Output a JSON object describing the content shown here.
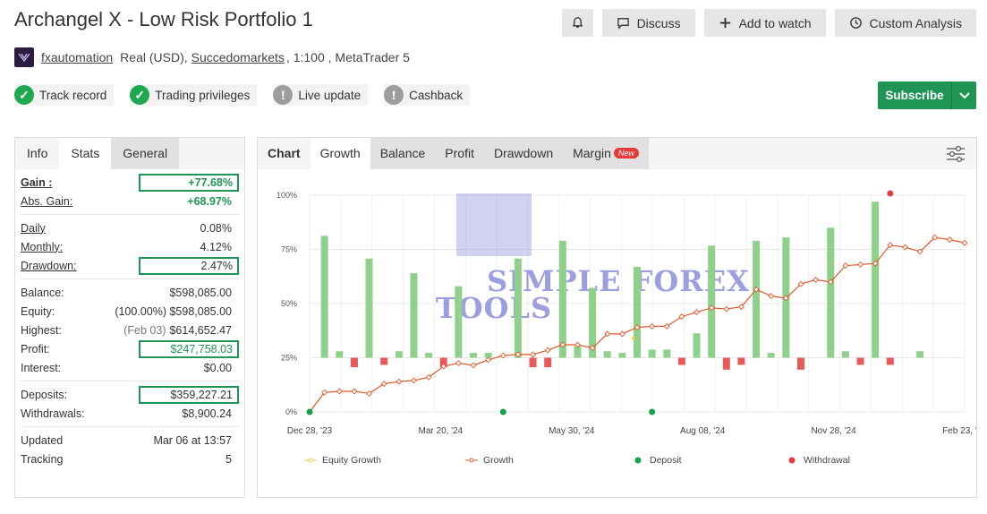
{
  "header": {
    "title": "Archangel X - Low Risk Portfolio 1",
    "buttons": {
      "discuss": "Discuss",
      "add_watch": "Add to watch",
      "custom_analysis": "Custom Analysis"
    },
    "user": "fxautomation",
    "account_prefix": "Real (USD),",
    "broker": "Succedomarkets",
    "account_suffix": ", 1:100 , MetaTrader 5"
  },
  "badges": [
    {
      "label": "Track record",
      "status": "ok"
    },
    {
      "label": "Trading privileges",
      "status": "ok"
    },
    {
      "label": "Live update",
      "status": "warn"
    },
    {
      "label": "Cashback",
      "status": "warn"
    }
  ],
  "subscribe": "Subscribe",
  "stats": {
    "tabs": [
      "Info",
      "Stats",
      "General"
    ],
    "gain_label": "Gain :",
    "gain": "+77.68%",
    "abs_gain_label": "Abs. Gain:",
    "abs_gain": "+68.97%",
    "daily_label": "Daily",
    "daily": "0.08%",
    "monthly_label": "Monthly:",
    "monthly": "4.12%",
    "drawdown_label": "Drawdown:",
    "drawdown": "2.47%",
    "balance_label": "Balance:",
    "balance": "$598,085.00",
    "equity_label": "Equity:",
    "equity_pct": "(100.00%)",
    "equity": "$598,085.00",
    "highest_label": "Highest:",
    "highest_date": "(Feb 03)",
    "highest": "$614,652.47",
    "profit_label": "Profit:",
    "profit": "$247,758.03",
    "interest_label": "Interest:",
    "interest": "$0.00",
    "deposits_label": "Deposits:",
    "deposits": "$359,227.21",
    "withdrawals_label": "Withdrawals:",
    "withdrawals": "$8,900.24",
    "updated_label": "Updated",
    "updated": "Mar 06 at 13:57",
    "tracking_label": "Tracking",
    "tracking": "5"
  },
  "chart_tabs": {
    "chart": "Chart",
    "growth": "Growth",
    "balance": "Balance",
    "profit": "Profit",
    "drawdown": "Drawdown",
    "margin": "Margin",
    "new": "New"
  },
  "chart_data": {
    "type": "line",
    "y_ticks": [
      "100%",
      "75%",
      "50%",
      "25%",
      "0%"
    ],
    "ylim": [
      0,
      100
    ],
    "x_ticks": [
      "Dec 28, '23",
      "Mar 20, '24",
      "May 30, '24",
      "Aug 08, '24",
      "Nov 28, '24",
      "Feb 23, '25"
    ],
    "legend": [
      "Equity Growth",
      "Growth",
      "Deposit",
      "Withdrawal"
    ],
    "growth": [
      0,
      9,
      9.5,
      9.5,
      8.5,
      13,
      14,
      14.5,
      16,
      21,
      22.5,
      21.5,
      24,
      26,
      26.5,
      26.5,
      28.5,
      31,
      31,
      29.5,
      36,
      36,
      39,
      39.5,
      39.5,
      44,
      46,
      48,
      47.5,
      48.5,
      56.5,
      53.5,
      52.5,
      59,
      61,
      60,
      67.5,
      68,
      68.5,
      77,
      76,
      74,
      80.5,
      79.5,
      78
    ],
    "bars_pos": [
      [
        1,
        75
      ],
      [
        2,
        4
      ],
      [
        4,
        61
      ],
      [
        6,
        4
      ],
      [
        7,
        52
      ],
      [
        8,
        3
      ],
      [
        10,
        44
      ],
      [
        11,
        3
      ],
      [
        12,
        3
      ],
      [
        14,
        61
      ],
      [
        17,
        72
      ],
      [
        18,
        7
      ],
      [
        19,
        43
      ],
      [
        20,
        4
      ],
      [
        21,
        3
      ],
      [
        22,
        56
      ],
      [
        23,
        5
      ],
      [
        24,
        5
      ],
      [
        26,
        15
      ],
      [
        27,
        69
      ],
      [
        30,
        72
      ],
      [
        31,
        3
      ],
      [
        32,
        74
      ],
      [
        35,
        80
      ],
      [
        36,
        4
      ],
      [
        38,
        96
      ],
      [
        41,
        4
      ]
    ],
    "bars_neg": [
      [
        3,
        4
      ],
      [
        5,
        3
      ],
      [
        9,
        4
      ],
      [
        15,
        4
      ],
      [
        16,
        4
      ],
      [
        25,
        3
      ],
      [
        28,
        5
      ],
      [
        29,
        3
      ],
      [
        33,
        5
      ],
      [
        37,
        3
      ],
      [
        39,
        3
      ]
    ],
    "deposit_points": [
      0,
      13,
      23
    ],
    "withdrawal_points": [
      39
    ],
    "equity_points": [
      22
    ]
  },
  "watermark": {
    "line1": "SIMPLE FOREX",
    "line2": "TOOLS"
  }
}
